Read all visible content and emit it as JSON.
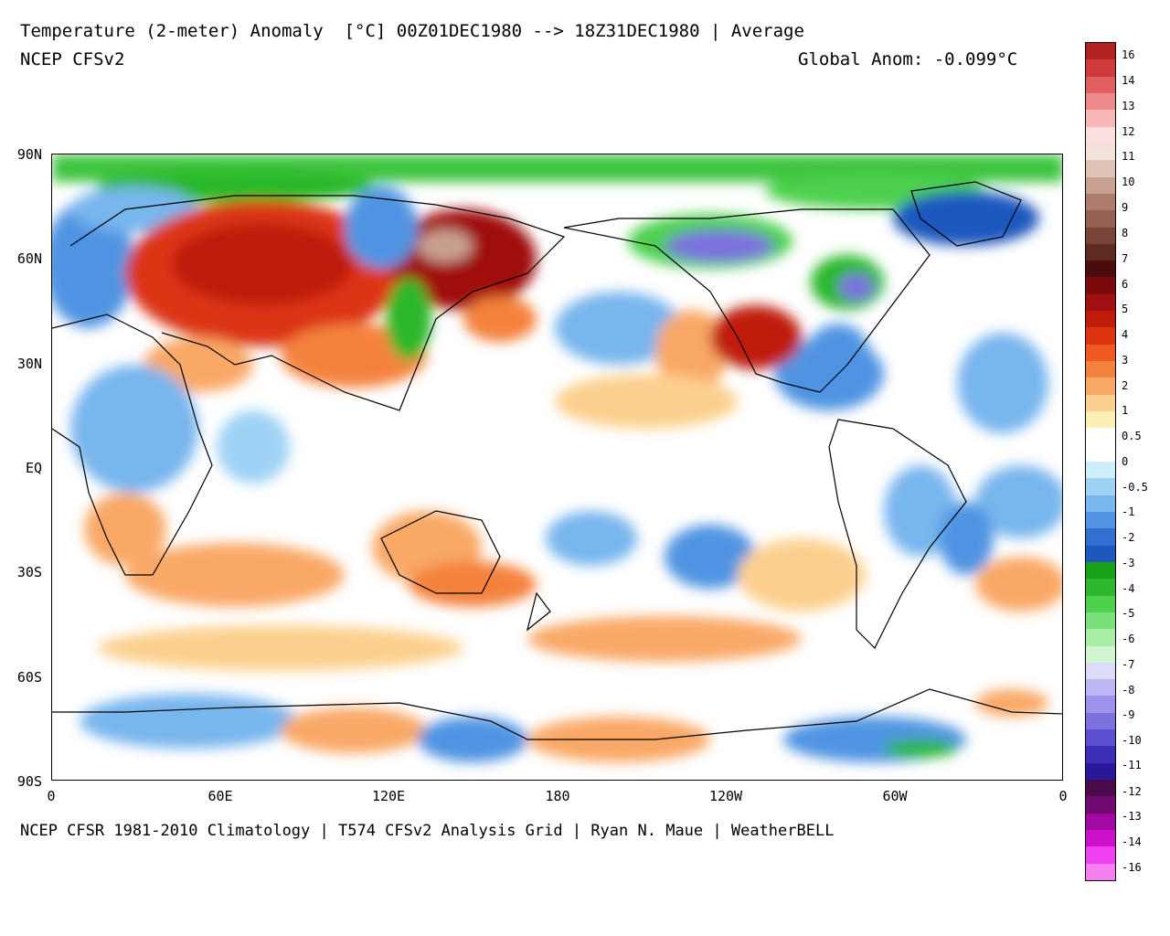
{
  "header": {
    "title": "Temperature (2-meter) Anomaly  [°C] 00Z01DEC1980 --> 18Z31DEC1980 | Average",
    "model": "NCEP CFSv2",
    "global_anom": "Global Anom: -0.099°C"
  },
  "footer": "NCEP CFSR 1981-2010 Climatology | T574 CFSv2 Analysis Grid | Ryan N. Maue | WeatherBELL",
  "axes": {
    "lat_labels": [
      "90N",
      "60N",
      "30N",
      "EQ",
      "30S",
      "60S",
      "90S"
    ],
    "lon_labels": [
      "0",
      "60E",
      "120E",
      "180",
      "120W",
      "60W",
      "0"
    ]
  },
  "colorbar": {
    "labels": [
      "16",
      "14",
      "13",
      "12",
      "11",
      "10",
      "9",
      "8",
      "7",
      "6",
      "5",
      "4",
      "3",
      "2",
      "1",
      "0.5",
      "0",
      "-0.5",
      "-1",
      "-2",
      "-3",
      "-4",
      "-5",
      "-6",
      "-7",
      "-8",
      "-9",
      "-10",
      "-11",
      "-12",
      "-13",
      "-14",
      "-16"
    ],
    "colors": [
      "#b22222",
      "#d03a3a",
      "#e06060",
      "#ee8a8a",
      "#f6b8b8",
      "#fbe0e0",
      "#f4e2da",
      "#e0c4b8",
      "#c8a090",
      "#ae7c6c",
      "#946050",
      "#784638",
      "#5c2c22",
      "#4a0c0c",
      "#7c0a0a",
      "#a01010",
      "#c01c0c",
      "#dc3412",
      "#ee5a22",
      "#f4823e",
      "#f9a866",
      "#fcd08e",
      "#fdf0b4",
      "#ffffff",
      "#ffffff",
      "#cdeefb",
      "#9fd3f5",
      "#78b6ee",
      "#5094e2",
      "#3270d0",
      "#1e58be",
      "#18a018",
      "#2cb82c",
      "#4ed04e",
      "#7ae07a",
      "#a6eea6",
      "#d2f6d2",
      "#dcdcfa",
      "#bcb8f4",
      "#9c94ea",
      "#7c72de",
      "#5c50d0",
      "#3c30b8",
      "#2a1898",
      "#4a0a4a",
      "#700a70",
      "#a00aa0",
      "#cc10cc",
      "#ee40ee",
      "#f480f0"
    ]
  }
}
